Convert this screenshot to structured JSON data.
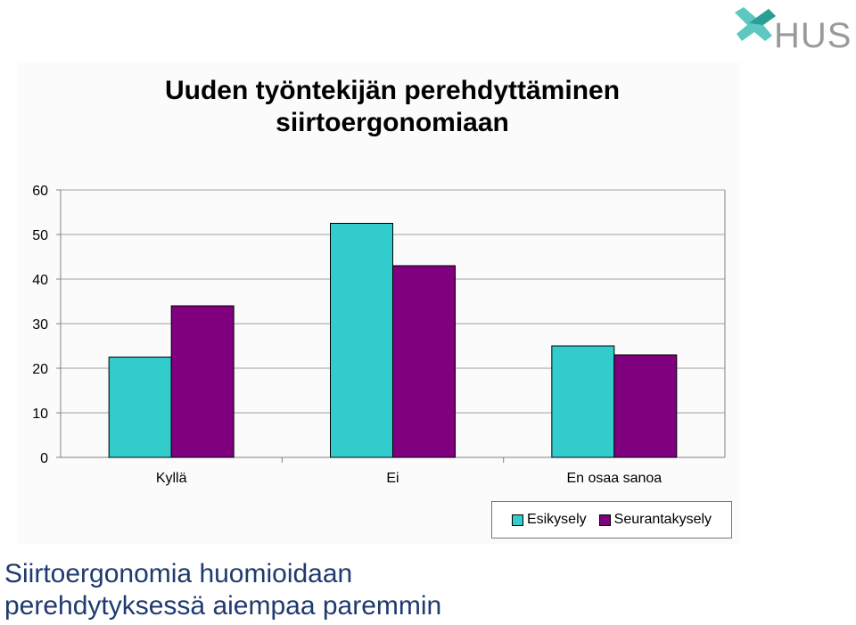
{
  "logo": {
    "text": "HUS",
    "icon": "hus-cross-logo-icon"
  },
  "colors": {
    "esikysely": "#33CCCC",
    "seuranta": "#800080",
    "grid": "#a0a0a0"
  },
  "chart_data": {
    "type": "bar",
    "title_lines": [
      "Uuden työntekijän perehdyttäminen",
      "siirtoergonomiaan"
    ],
    "categories": [
      "Kyllä",
      "Ei",
      "En osaa sanoa"
    ],
    "series": [
      {
        "name": "Esikysely",
        "values": [
          22.5,
          52.5,
          25
        ]
      },
      {
        "name": "Seurantakysely",
        "values": [
          34,
          43,
          23
        ]
      }
    ],
    "ylim": [
      0,
      60
    ],
    "yticks": [
      "0",
      "10",
      "20",
      "30",
      "40",
      "50",
      "60"
    ],
    "grid": true,
    "legend_position": "bottom-right"
  },
  "caption": {
    "line1": "Siirtoergonomia huomioidaan",
    "line2": "perehdytyksessä aiempaa paremmin"
  }
}
